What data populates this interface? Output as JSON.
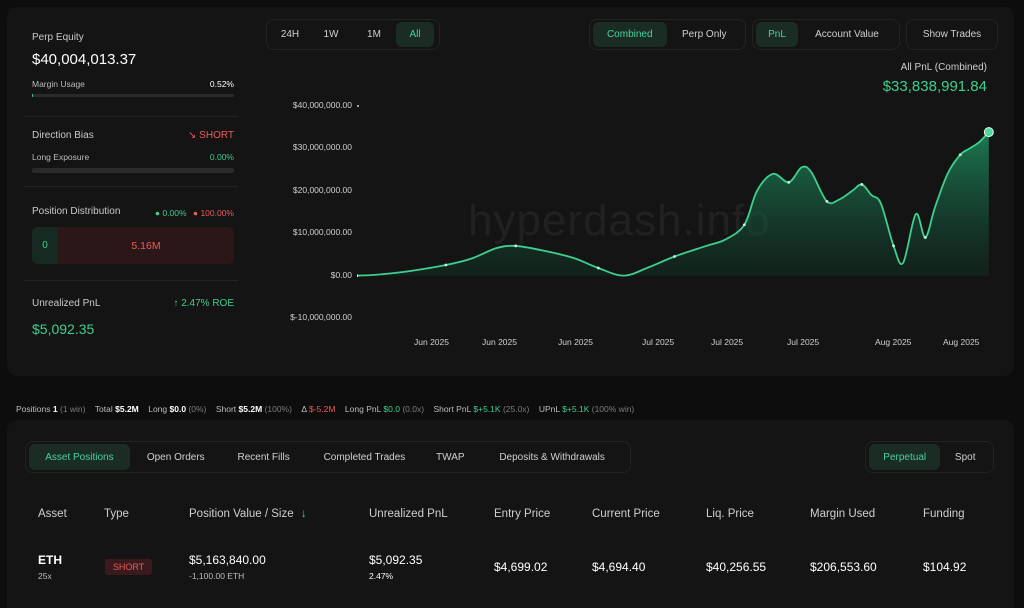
{
  "summary": {
    "perp_equity_label": "Perp Equity",
    "perp_equity_value": "$40,004,013.37",
    "margin_usage_label": "Margin Usage",
    "margin_usage_value": "0.52%",
    "margin_usage_fraction": 0.0052,
    "direction_bias_label": "Direction Bias",
    "direction_bias_value": "SHORT",
    "long_exposure_label": "Long Exposure",
    "long_exposure_value": "0.00%",
    "long_exposure_fraction": 0.0,
    "position_distribution_label": "Position Distribution",
    "dist_long_pct": "0.00%",
    "dist_short_pct": "100.00%",
    "dist_long_value": "0",
    "dist_short_value": "5.16M",
    "unrealized_pnl_label": "Unrealized PnL",
    "unrealized_roe": "2.47% ROE",
    "unrealized_pnl_value": "$5,092.35"
  },
  "range_tabs": [
    "24H",
    "1W",
    "1M",
    "All"
  ],
  "range_active": "All",
  "mode_tabs": [
    "Combined",
    "Perp Only"
  ],
  "mode_active": "Combined",
  "metric_tabs": [
    "PnL",
    "Account Value"
  ],
  "metric_active": "PnL",
  "show_trades_label": "Show Trades",
  "chart_header": {
    "label": "All PnL (Combined)",
    "value": "$33,838,991.84"
  },
  "watermark": "hyperdash.info",
  "chart_data": {
    "type": "area",
    "title": "",
    "xlabel": "",
    "ylabel": "",
    "ylim": [
      -10000000,
      40000000
    ],
    "yticks": [
      "$40,000,000.00",
      "$30,000,000.00",
      "$20,000,000.00",
      "$10,000,000.00",
      "$0.00",
      "$-10,000,000.00"
    ],
    "x_tick_labels": [
      "Jun 2025",
      "Jun 2025",
      "Jun 2025",
      "Jul 2025",
      "Jul 2025",
      "Jul 2025",
      "Aug 2025",
      "Aug 2025"
    ],
    "series": [
      {
        "color": "#3ecf8e",
        "points": [
          [
            0.0,
            0
          ],
          [
            0.03,
            200000
          ],
          [
            0.08,
            1000000
          ],
          [
            0.14,
            2500000
          ],
          [
            0.18,
            4000000
          ],
          [
            0.22,
            6500000
          ],
          [
            0.25,
            7000000
          ],
          [
            0.29,
            6000000
          ],
          [
            0.34,
            4200000
          ],
          [
            0.38,
            1800000
          ],
          [
            0.42,
            0
          ],
          [
            0.46,
            2000000
          ],
          [
            0.5,
            4500000
          ],
          [
            0.55,
            7000000
          ],
          [
            0.58,
            8500000
          ],
          [
            0.61,
            12000000
          ],
          [
            0.63,
            20000000
          ],
          [
            0.655,
            24000000
          ],
          [
            0.68,
            22000000
          ],
          [
            0.7,
            25500000
          ],
          [
            0.715,
            24500000
          ],
          [
            0.74,
            17500000
          ],
          [
            0.76,
            18000000
          ],
          [
            0.78,
            20000000
          ],
          [
            0.795,
            21500000
          ],
          [
            0.81,
            19000000
          ],
          [
            0.825,
            17000000
          ],
          [
            0.845,
            7000000
          ],
          [
            0.86,
            3000000
          ],
          [
            0.88,
            14500000
          ],
          [
            0.895,
            9000000
          ],
          [
            0.91,
            16000000
          ],
          [
            0.93,
            24000000
          ],
          [
            0.95,
            28500000
          ],
          [
            0.965,
            30000000
          ],
          [
            0.98,
            31500000
          ],
          [
            0.995,
            33838991
          ]
        ]
      }
    ]
  },
  "stats_bar": {
    "positions_label": "Positions",
    "positions_value": "1",
    "positions_note": "(1 win)",
    "total_label": "Total",
    "total_value": "$5.2M",
    "long_label": "Long",
    "long_value": "$0.0",
    "long_note": "(0%)",
    "short_label": "Short",
    "short_value": "$5.2M",
    "short_note": "(100%)",
    "delta_label": "Δ",
    "delta_value": "$-5.2M",
    "long_pnl_label": "Long PnL",
    "long_pnl_value": "$0.0",
    "long_pnl_note": "(0.0x)",
    "short_pnl_label": "Short PnL",
    "short_pnl_value": "$+5.1K",
    "short_pnl_note": "(25.0x)",
    "upnl_label": "UPnL",
    "upnl_value": "$+5.1K",
    "upnl_note": "(100% win)"
  },
  "position_tabs": [
    "Asset Positions",
    "Open Orders",
    "Recent Fills",
    "Completed Trades",
    "TWAP",
    "Deposits & Withdrawals"
  ],
  "position_tab_active": "Asset Positions",
  "market_tabs": [
    "Perpetual",
    "Spot"
  ],
  "market_active": "Perpetual",
  "table": {
    "headers": [
      "Asset",
      "Type",
      "Position Value / Size",
      "Unrealized PnL",
      "Entry Price",
      "Current Price",
      "Liq. Price",
      "Margin Used",
      "Funding"
    ],
    "sort_icon": "arrow-down-icon",
    "rows": [
      {
        "asset": "ETH",
        "leverage": "25x",
        "type": "SHORT",
        "position_value": "$5,163,840.00",
        "size": "-1,100.00 ETH",
        "unrealized_pnl": "$5,092.35",
        "unrealized_pct": "2.47%",
        "entry_price": "$4,699.02",
        "current_price": "$4,694.40",
        "liq_price": "$40,256.55",
        "margin_used": "$206,553.60",
        "funding": "$104.92"
      }
    ]
  },
  "colors": {
    "accent_green": "#3ecf8e",
    "short_red": "#ef5a5a",
    "background": "#0d0d0d",
    "card": "#141414"
  }
}
